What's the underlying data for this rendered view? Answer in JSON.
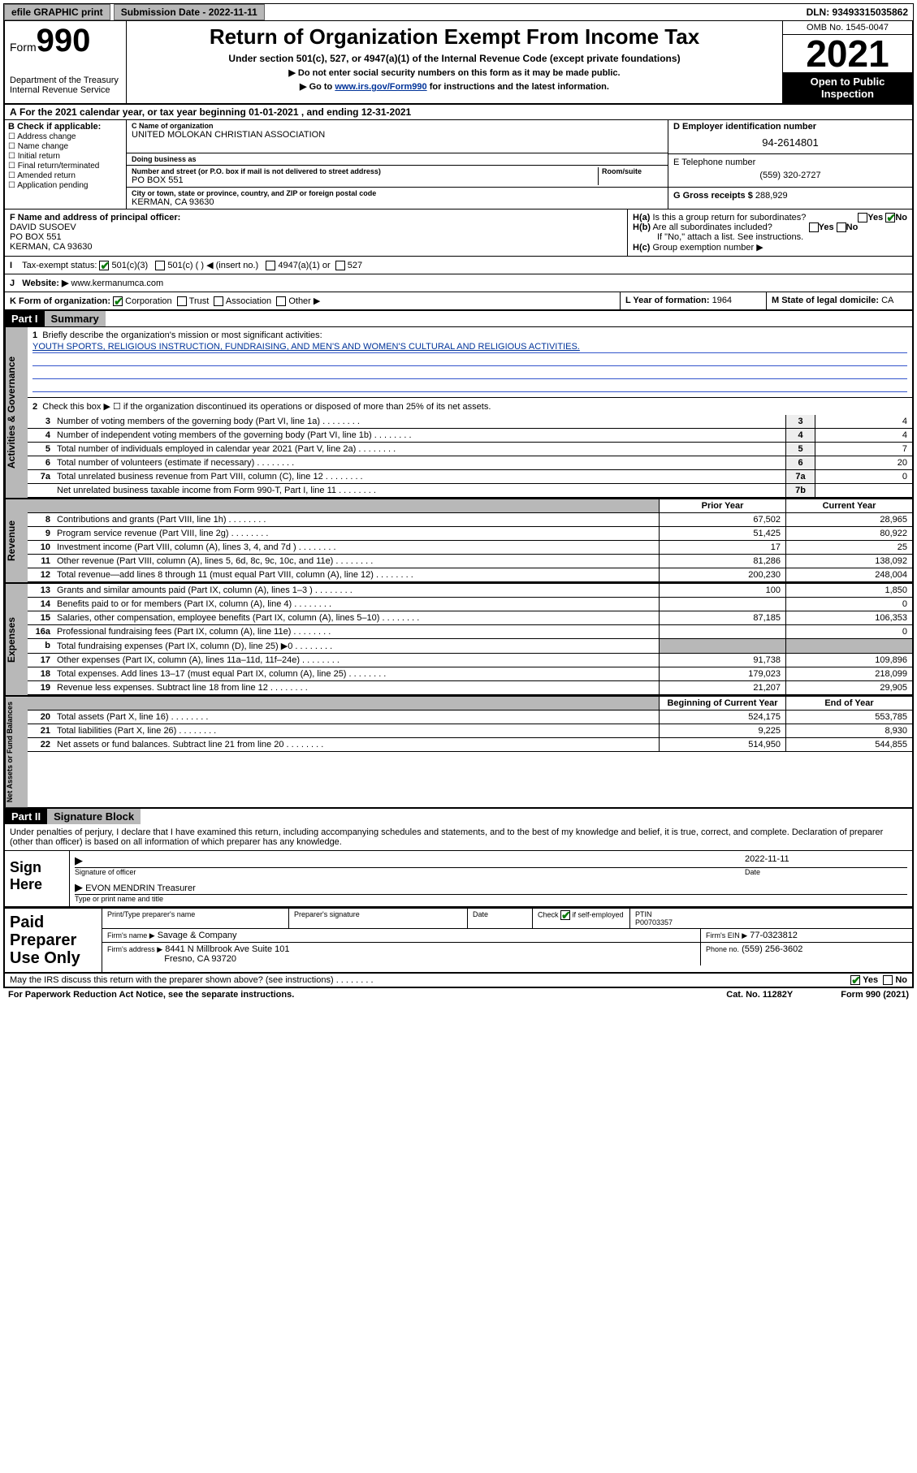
{
  "topbar": {
    "efile": "efile GRAPHIC print",
    "subdate_lbl": "Submission Date - 2022-11-11",
    "dln": "DLN: 93493315035862"
  },
  "header": {
    "form_word": "Form",
    "form_number": "990",
    "dept": "Department of the Treasury\nInternal Revenue Service",
    "title": "Return of Organization Exempt From Income Tax",
    "sub": "Under section 501(c), 527, or 4947(a)(1) of the Internal Revenue Code (except private foundations)",
    "line2": "▶ Do not enter social security numbers on this form as it may be made public.",
    "line3_pre": "▶ Go to ",
    "line3_link": "www.irs.gov/Form990",
    "line3_post": " for instructions and the latest information.",
    "omb": "OMB No. 1545-0047",
    "year": "2021",
    "inspect": "Open to Public Inspection"
  },
  "A": {
    "text": "For the 2021 calendar year, or tax year beginning 01-01-2021   , and ending 12-31-2021"
  },
  "B": {
    "lbl": "B Check if applicable:",
    "opts": [
      "Address change",
      "Name change",
      "Initial return",
      "Final return/terminated",
      "Amended return",
      "Application pending"
    ]
  },
  "C": {
    "name_lbl": "C Name of organization",
    "name": "UNITED MOLOKAN CHRISTIAN ASSOCIATION",
    "dba_lbl": "Doing business as",
    "addr_lbl": "Number and street (or P.O. box if mail is not delivered to street address)",
    "room_lbl": "Room/suite",
    "addr": "PO BOX 551",
    "city_lbl": "City or town, state or province, country, and ZIP or foreign postal code",
    "city": "KERMAN, CA  93630"
  },
  "D": {
    "lbl": "D Employer identification number",
    "val": "94-2614801"
  },
  "E": {
    "lbl": "E Telephone number",
    "val": "(559) 320-2727"
  },
  "G": {
    "lbl": "G Gross receipts $",
    "val": "288,929"
  },
  "F": {
    "lbl": "F Name and address of principal officer:",
    "name": "DAVID SUSOEV",
    "addr1": "PO BOX 551",
    "addr2": "KERMAN, CA  93630"
  },
  "H": {
    "a": "Is this a group return for subordinates?",
    "b": "Are all subordinates included?",
    "note": "If \"No,\" attach a list. See instructions.",
    "c": "Group exemption number ▶"
  },
  "I": {
    "lbl": "Tax-exempt status:",
    "o1": "501(c)(3)",
    "o2": "501(c) (  ) ◀ (insert no.)",
    "o3": "4947(a)(1) or",
    "o4": "527"
  },
  "J": {
    "lbl": "Website: ▶",
    "val": "www.kermanumca.com"
  },
  "K": {
    "lbl": "K Form of organization:",
    "opts": [
      "Corporation",
      "Trust",
      "Association",
      "Other ▶"
    ]
  },
  "L": {
    "lbl": "L Year of formation:",
    "val": "1964"
  },
  "M": {
    "lbl": "M State of legal domicile:",
    "val": "CA"
  },
  "part1": {
    "hdr": "Part I",
    "title": "Summary",
    "l1": "Briefly describe the organization's mission or most significant activities:",
    "mission": "YOUTH SPORTS, RELIGIOUS INSTRUCTION, FUNDRAISING, AND MEN'S AND WOMEN'S CULTURAL AND RELIGIOUS ACTIVITIES.",
    "l2": "Check this box ▶ ☐  if the organization discontinued its operations or disposed of more than 25% of its net assets.",
    "lines_gov": [
      {
        "n": "3",
        "d": "Number of voting members of the governing body (Part VI, line 1a)",
        "b": "3",
        "v": "4"
      },
      {
        "n": "4",
        "d": "Number of independent voting members of the governing body (Part VI, line 1b)",
        "b": "4",
        "v": "4"
      },
      {
        "n": "5",
        "d": "Total number of individuals employed in calendar year 2021 (Part V, line 2a)",
        "b": "5",
        "v": "7"
      },
      {
        "n": "6",
        "d": "Total number of volunteers (estimate if necessary)",
        "b": "6",
        "v": "20"
      },
      {
        "n": "7a",
        "d": "Total unrelated business revenue from Part VIII, column (C), line 12",
        "b": "7a",
        "v": "0"
      },
      {
        "n": "",
        "d": "Net unrelated business taxable income from Form 990-T, Part I, line 11",
        "b": "7b",
        "v": ""
      }
    ],
    "col_hdr": {
      "prior": "Prior Year",
      "current": "Current Year"
    },
    "rev": [
      {
        "n": "8",
        "d": "Contributions and grants (Part VIII, line 1h)",
        "p": "67,502",
        "c": "28,965"
      },
      {
        "n": "9",
        "d": "Program service revenue (Part VIII, line 2g)",
        "p": "51,425",
        "c": "80,922"
      },
      {
        "n": "10",
        "d": "Investment income (Part VIII, column (A), lines 3, 4, and 7d )",
        "p": "17",
        "c": "25"
      },
      {
        "n": "11",
        "d": "Other revenue (Part VIII, column (A), lines 5, 6d, 8c, 9c, 10c, and 11e)",
        "p": "81,286",
        "c": "138,092"
      },
      {
        "n": "12",
        "d": "Total revenue—add lines 8 through 11 (must equal Part VIII, column (A), line 12)",
        "p": "200,230",
        "c": "248,004"
      }
    ],
    "exp": [
      {
        "n": "13",
        "d": "Grants and similar amounts paid (Part IX, column (A), lines 1–3 )",
        "p": "100",
        "c": "1,850"
      },
      {
        "n": "14",
        "d": "Benefits paid to or for members (Part IX, column (A), line 4)",
        "p": "",
        "c": "0"
      },
      {
        "n": "15",
        "d": "Salaries, other compensation, employee benefits (Part IX, column (A), lines 5–10)",
        "p": "87,185",
        "c": "106,353"
      },
      {
        "n": "16a",
        "d": "Professional fundraising fees (Part IX, column (A), line 11e)",
        "p": "",
        "c": "0"
      },
      {
        "n": "b",
        "d": "Total fundraising expenses (Part IX, column (D), line 25) ▶0",
        "p": "GREY",
        "c": "GREY"
      },
      {
        "n": "17",
        "d": "Other expenses (Part IX, column (A), lines 11a–11d, 11f–24e)",
        "p": "91,738",
        "c": "109,896"
      },
      {
        "n": "18",
        "d": "Total expenses. Add lines 13–17 (must equal Part IX, column (A), line 25)",
        "p": "179,023",
        "c": "218,099"
      },
      {
        "n": "19",
        "d": "Revenue less expenses. Subtract line 18 from line 12",
        "p": "21,207",
        "c": "29,905"
      }
    ],
    "na_hdr": {
      "beg": "Beginning of Current Year",
      "end": "End of Year"
    },
    "na": [
      {
        "n": "20",
        "d": "Total assets (Part X, line 16)",
        "p": "524,175",
        "c": "553,785"
      },
      {
        "n": "21",
        "d": "Total liabilities (Part X, line 26)",
        "p": "9,225",
        "c": "8,930"
      },
      {
        "n": "22",
        "d": "Net assets or fund balances. Subtract line 21 from line 20",
        "p": "514,950",
        "c": "544,855"
      }
    ]
  },
  "part2": {
    "hdr": "Part II",
    "title": "Signature Block",
    "decl": "Under penalties of perjury, I declare that I have examined this return, including accompanying schedules and statements, and to the best of my knowledge and belief, it is true, correct, and complete. Declaration of preparer (other than officer) is based on all information of which preparer has any knowledge.",
    "sign_lbl": "Sign Here",
    "sig_officer": "Signature of officer",
    "date_lbl": "Date",
    "date_val": "2022-11-11",
    "officer_name": "EVON MENDRIN Treasurer",
    "type_lbl": "Type or print name and title"
  },
  "preparer": {
    "lbl": "Paid Preparer Use Only",
    "h1": "Print/Type preparer's name",
    "h2": "Preparer's signature",
    "h3": "Date",
    "h4_pre": "Check",
    "h4_post": "if self-employed",
    "ptin_lbl": "PTIN",
    "ptin": "P00703357",
    "firm_lbl": "Firm's name   ▶",
    "firm": "Savage & Company",
    "ein_lbl": "Firm's EIN ▶",
    "ein": "77-0323812",
    "addr_lbl": "Firm's address ▶",
    "addr1": "8441 N Millbrook Ave Suite 101",
    "addr2": "Fresno, CA  93720",
    "phone_lbl": "Phone no.",
    "phone": "(559) 256-3602"
  },
  "footer": {
    "discuss": "May the IRS discuss this return with the preparer shown above? (see instructions)",
    "pra": "For Paperwork Reduction Act Notice, see the separate instructions.",
    "cat": "Cat. No. 11282Y",
    "form": "Form 990 (2021)"
  },
  "vtabs": {
    "gov": "Activities & Governance",
    "rev": "Revenue",
    "exp": "Expenses",
    "na": "Net Assets or Fund Balances"
  }
}
